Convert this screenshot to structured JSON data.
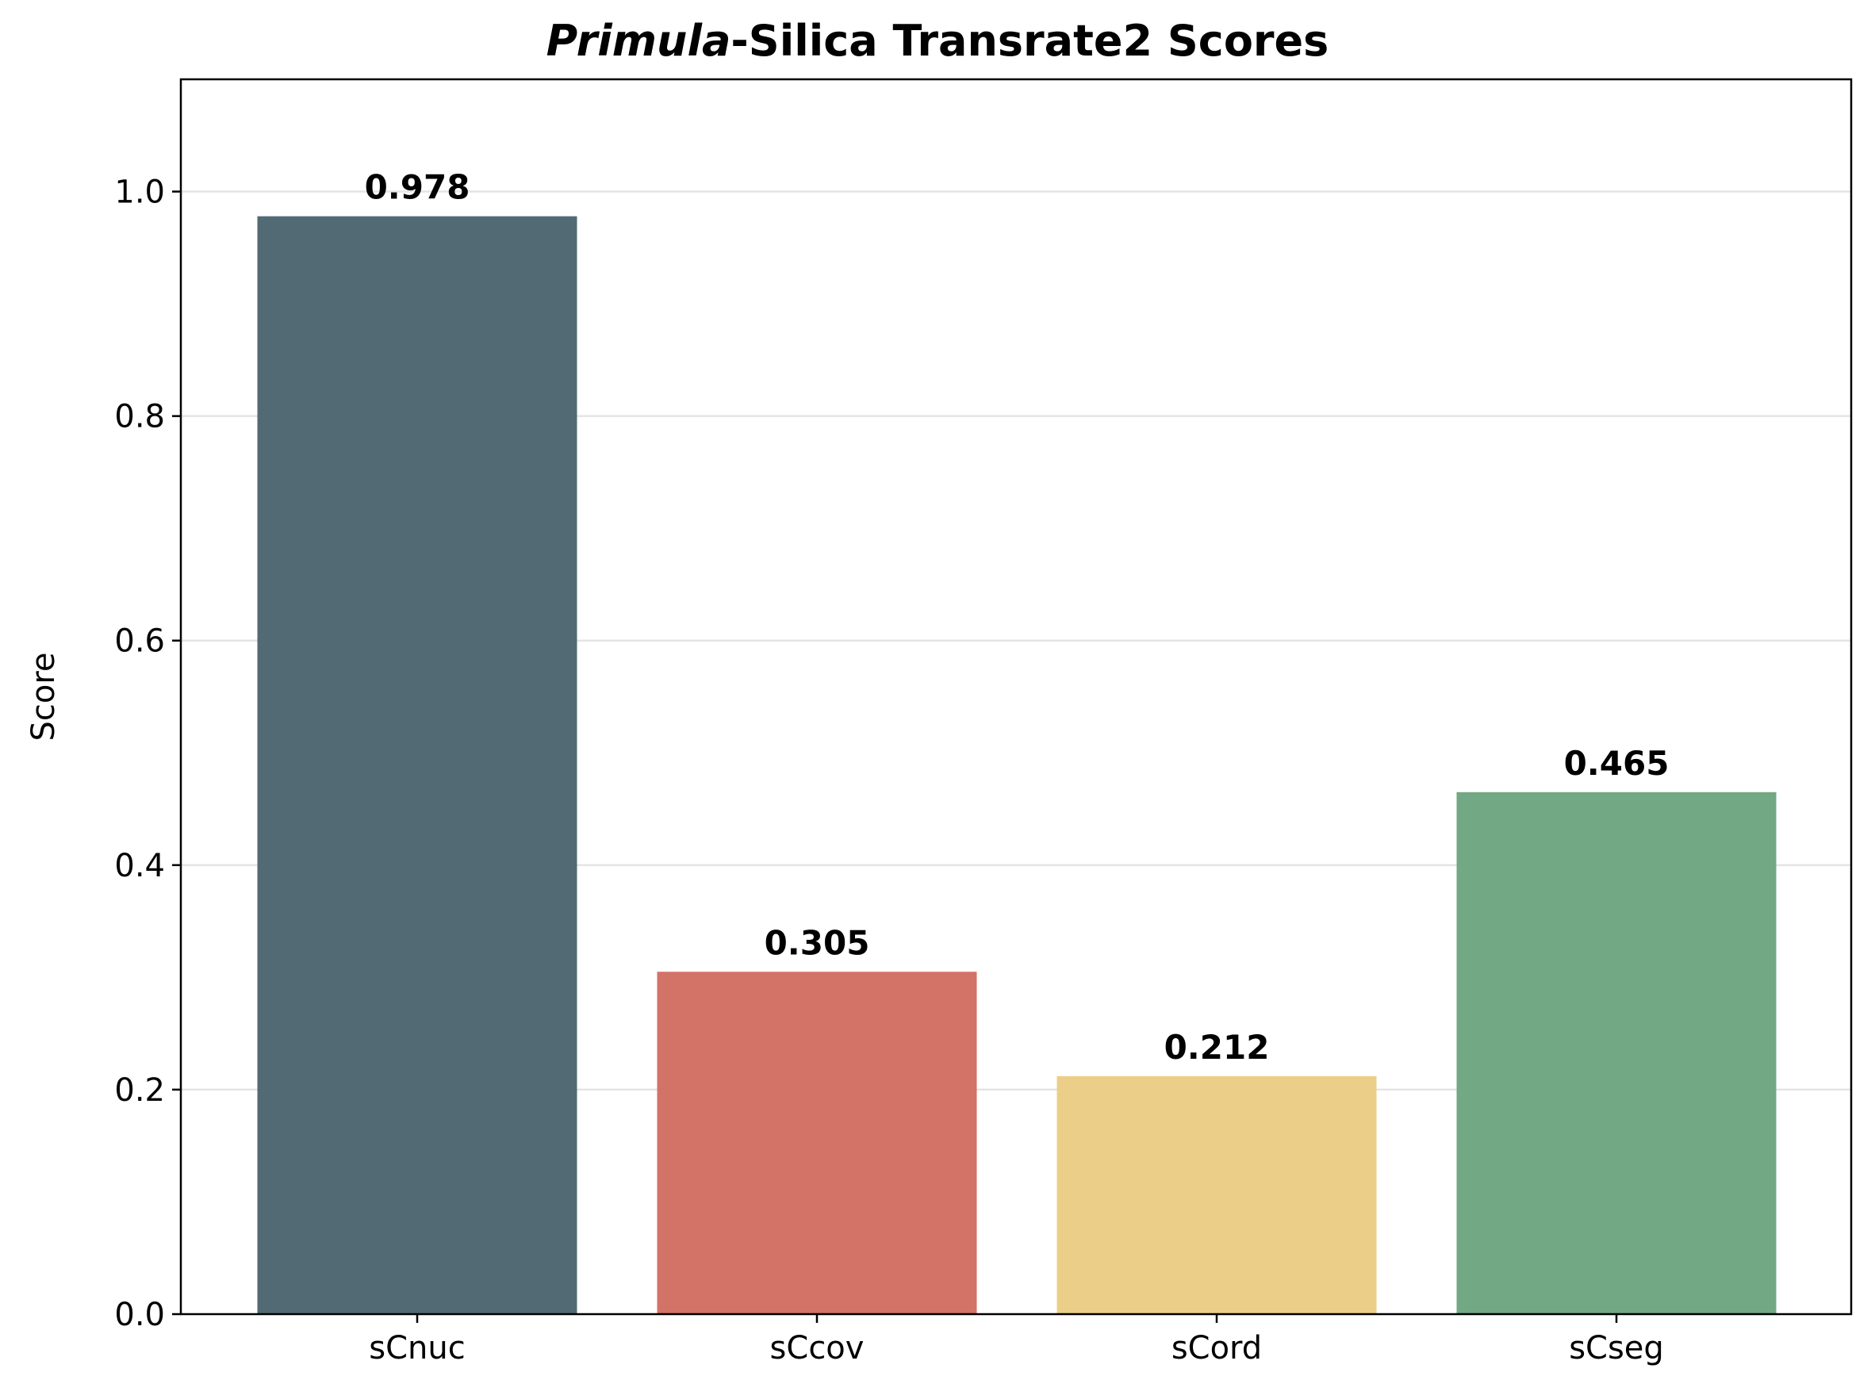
{
  "chart_data": {
    "type": "bar",
    "title_italic": "Primula",
    "title_rest": "-Silica Transrate2 Scores",
    "xlabel": "",
    "ylabel": "Score",
    "ylim": [
      0,
      1.1
    ],
    "yticks": [
      "0.0",
      "0.2",
      "0.4",
      "0.6",
      "0.8",
      "1.0"
    ],
    "ytick_values": [
      0.0,
      0.2,
      0.4,
      0.6,
      0.8,
      1.0
    ],
    "grid": "horizontal",
    "categories": [
      "sCnuc",
      "sCcov",
      "sCord",
      "sCseg"
    ],
    "values": [
      0.978,
      0.305,
      0.212,
      0.465
    ],
    "value_labels": [
      "0.978",
      "0.305",
      "0.212",
      "0.465"
    ],
    "colors": [
      "#526a73",
      "#d37266",
      "#ebce88",
      "#72a884"
    ]
  }
}
